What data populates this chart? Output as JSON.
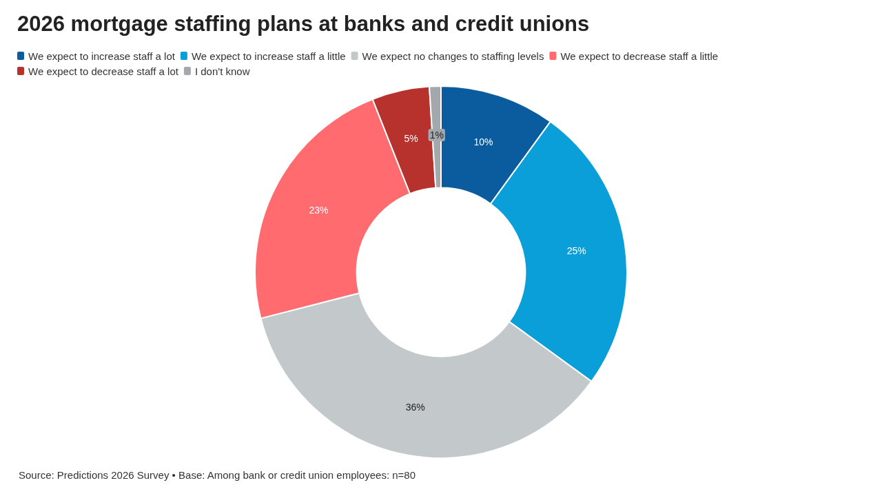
{
  "chart_data": {
    "type": "donut",
    "title": "2026 mortgage staffing plans at banks and credit unions",
    "categories": [
      "We expect to increase staff a lot",
      "We expect to increase staff a little",
      "We expect no changes to staffing levels",
      "We expect to decrease staff a little",
      "We expect to decrease staff a lot",
      "I don't know"
    ],
    "values": [
      10,
      25,
      36,
      23,
      5,
      1
    ],
    "colors": [
      "#0b5c9e",
      "#0a9fd8",
      "#c3c8cb",
      "#ff6b6e",
      "#b8322d",
      "#a3a8ad"
    ],
    "value_labels": [
      "10%",
      "25%",
      "36%",
      "23%",
      "5%",
      "1%"
    ],
    "legend": "top left",
    "annotations": [
      "Source: Predictions 2026 Survey • Base: Among bank or credit union employees: n=80"
    ]
  }
}
